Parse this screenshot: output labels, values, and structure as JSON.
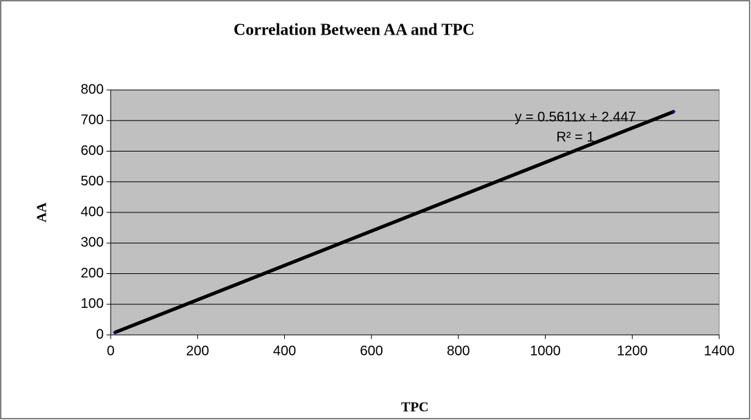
{
  "chart_data": {
    "type": "scatter",
    "title": "Correlation Between AA and TPC",
    "x_label": "TPC",
    "y_label": "AA",
    "annotations": [
      "y = 0.5611x + 2.447",
      "R² = 1"
    ],
    "series": [
      {
        "name": "AA",
        "color": "#000080",
        "x": [
          10,
          1295
        ],
        "values": [
          8,
          729
        ]
      }
    ],
    "trendline_color": "#000000",
    "xlim": [
      0,
      1400
    ],
    "xticks": [
      0,
      200,
      400,
      600,
      800,
      1000,
      1200,
      1400
    ],
    "ylim": [
      0,
      800
    ],
    "yticks": [
      0,
      100,
      200,
      300,
      400,
      500,
      600,
      700,
      800
    ],
    "grid": true,
    "plot_background": "#c0c0c0"
  }
}
